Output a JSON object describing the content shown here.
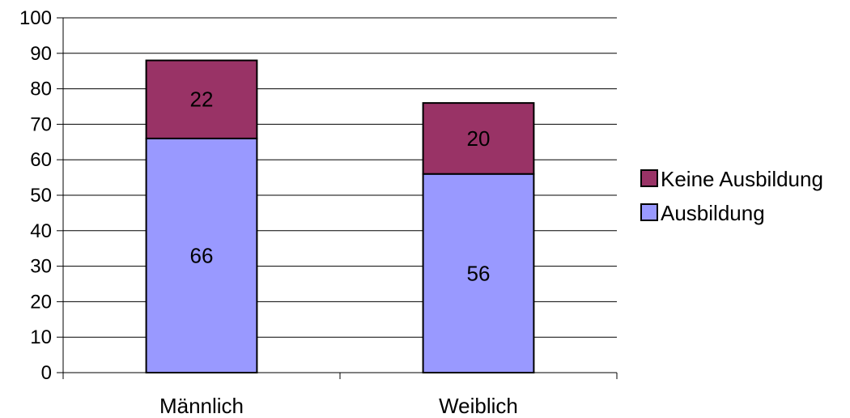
{
  "chart_data": {
    "type": "bar",
    "stacked": true,
    "categories": [
      "Männlich",
      "Weiblich"
    ],
    "series": [
      {
        "name": "Ausbildung",
        "values": [
          66,
          56
        ],
        "color": "#9999ff"
      },
      {
        "name": "Keine Ausbildung",
        "values": [
          22,
          20
        ],
        "color": "#993366"
      }
    ],
    "ylim": [
      0,
      100
    ],
    "yticks": [
      0,
      10,
      20,
      30,
      40,
      50,
      60,
      70,
      80,
      90,
      100
    ],
    "grid": true,
    "legend": "right",
    "legend_order": [
      "Keine Ausbildung",
      "Ausbildung"
    ]
  }
}
